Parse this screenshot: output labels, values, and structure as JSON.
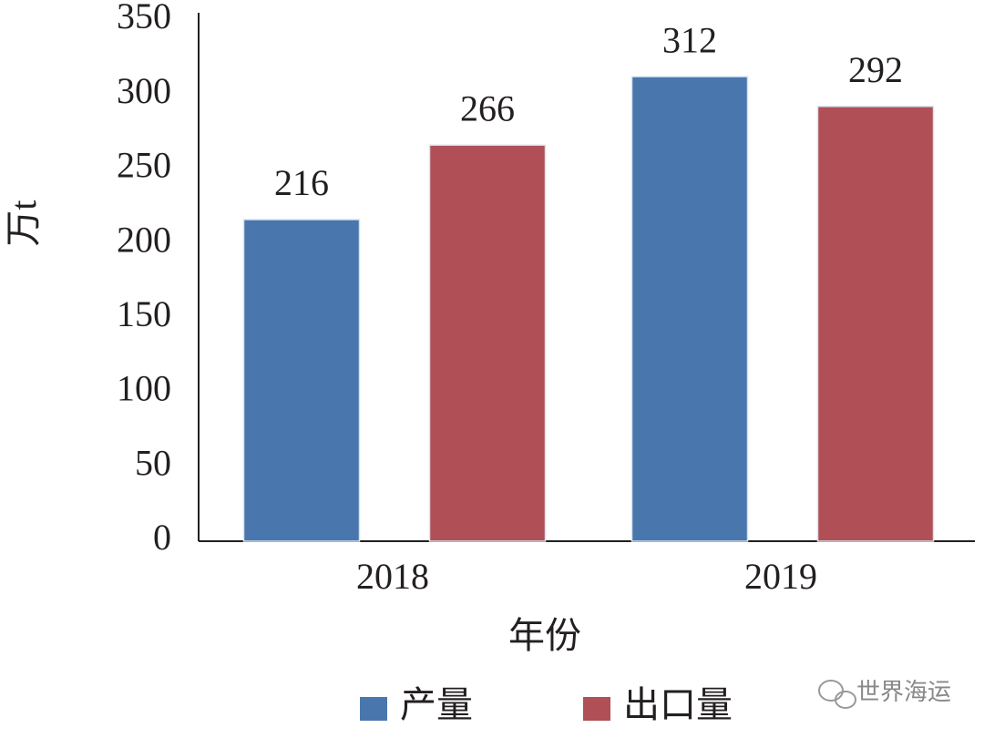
{
  "chart_data": {
    "type": "bar",
    "categories": [
      "2018",
      "2019"
    ],
    "series": [
      {
        "name": "产量",
        "color": "#4a76ae",
        "values": [
          216,
          312
        ]
      },
      {
        "name": "出口量",
        "color": "#b04f55",
        "values": [
          266,
          292
        ]
      }
    ],
    "ylim": [
      0,
      350
    ],
    "yticks": [
      0,
      50,
      100,
      150,
      200,
      250,
      300,
      350
    ],
    "y_label": "万t",
    "x_label": "年份",
    "grid": false,
    "legend": "bottom",
    "watermark": "世界海运"
  }
}
